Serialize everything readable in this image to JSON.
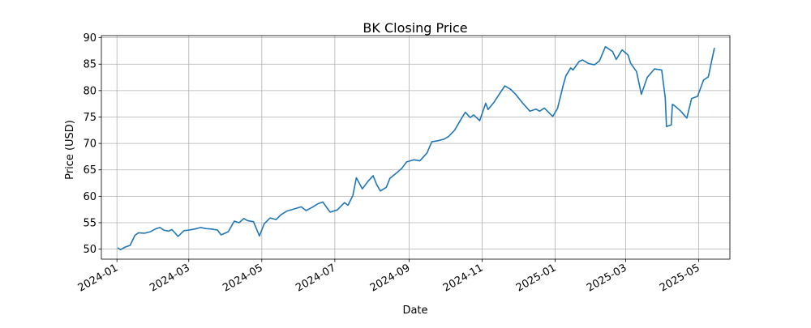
{
  "chart_data": {
    "type": "line",
    "title": "BK Closing Price",
    "xlabel": "Date",
    "ylabel": "Price (USD)",
    "x_range": [
      "2023-12-19",
      "2025-05-27"
    ],
    "ylim": [
      48.1,
      90.4
    ],
    "grid": true,
    "x_ticks": [
      "2024-01",
      "2024-03",
      "2024-05",
      "2024-07",
      "2024-09",
      "2024-11",
      "2025-01",
      "2025-03",
      "2025-05"
    ],
    "y_ticks": [
      50,
      55,
      60,
      65,
      70,
      75,
      80,
      85,
      90
    ],
    "line_color": "#1f77b4",
    "series": [
      {
        "x": [
          "2024-01-02",
          "2024-01-04",
          "2024-01-08",
          "2024-01-12",
          "2024-01-16",
          "2024-01-19",
          "2024-01-24",
          "2024-01-29",
          "2024-02-02",
          "2024-02-06",
          "2024-02-09",
          "2024-02-13",
          "2024-02-16",
          "2024-02-21",
          "2024-02-26",
          "2024-03-01",
          "2024-03-06",
          "2024-03-11",
          "2024-03-15",
          "2024-03-20",
          "2024-03-25",
          "2024-03-28",
          "2024-04-03",
          "2024-04-08",
          "2024-04-12",
          "2024-04-16",
          "2024-04-19",
          "2024-04-24",
          "2024-04-29",
          "2024-05-03",
          "2024-05-08",
          "2024-05-13",
          "2024-05-17",
          "2024-05-22",
          "2024-05-28",
          "2024-06-03",
          "2024-06-07",
          "2024-06-12",
          "2024-06-17",
          "2024-06-21",
          "2024-06-27",
          "2024-07-03",
          "2024-07-09",
          "2024-07-12",
          "2024-07-16",
          "2024-07-19",
          "2024-07-24",
          "2024-07-29",
          "2024-08-02",
          "2024-08-05",
          "2024-08-08",
          "2024-08-13",
          "2024-08-16",
          "2024-08-21",
          "2024-08-26",
          "2024-08-30",
          "2024-09-05",
          "2024-09-10",
          "2024-09-16",
          "2024-09-20",
          "2024-09-25",
          "2024-09-30",
          "2024-10-04",
          "2024-10-09",
          "2024-10-15",
          "2024-10-18",
          "2024-10-22",
          "2024-10-25",
          "2024-10-30",
          "2024-11-04",
          "2024-11-06",
          "2024-11-11",
          "2024-11-15",
          "2024-11-20",
          "2024-11-25",
          "2024-11-29",
          "2024-12-05",
          "2024-12-11",
          "2024-12-16",
          "2024-12-19",
          "2024-12-23",
          "2024-12-30",
          "2025-01-03",
          "2025-01-08",
          "2025-01-10",
          "2025-01-14",
          "2025-01-16",
          "2025-01-21",
          "2025-01-24",
          "2025-01-29",
          "2025-02-03",
          "2025-02-07",
          "2025-02-12",
          "2025-02-18",
          "2025-02-21",
          "2025-02-26",
          "2025-03-03",
          "2025-03-05",
          "2025-03-10",
          "2025-03-14",
          "2025-03-19",
          "2025-03-25",
          "2025-03-31",
          "2025-04-03",
          "2025-04-04",
          "2025-04-08",
          "2025-04-09",
          "2025-04-11",
          "2025-04-16",
          "2025-04-21",
          "2025-04-25",
          "2025-04-30",
          "2025-05-05",
          "2025-05-09",
          "2025-05-14"
        ],
        "y": [
          50.2,
          49.9,
          50.4,
          50.7,
          52.6,
          53.1,
          53.0,
          53.3,
          53.8,
          54.1,
          53.6,
          53.4,
          53.7,
          52.4,
          53.5,
          53.6,
          53.8,
          54.1,
          53.9,
          53.8,
          53.6,
          52.7,
          53.3,
          55.3,
          55.0,
          55.8,
          55.4,
          55.2,
          52.5,
          54.8,
          55.9,
          55.6,
          56.5,
          57.2,
          57.6,
          58.0,
          57.3,
          57.9,
          58.6,
          58.9,
          57.0,
          57.4,
          58.8,
          58.3,
          60.1,
          63.5,
          61.4,
          62.9,
          63.9,
          62.2,
          61.0,
          61.7,
          63.4,
          64.3,
          65.3,
          66.5,
          66.9,
          66.7,
          68.2,
          70.3,
          70.5,
          70.8,
          71.3,
          72.5,
          74.8,
          75.9,
          74.9,
          75.4,
          74.3,
          77.6,
          76.4,
          77.8,
          79.2,
          80.9,
          80.2,
          79.3,
          77.6,
          76.1,
          76.5,
          76.1,
          76.7,
          75.1,
          76.6,
          81.2,
          82.8,
          84.3,
          83.9,
          85.5,
          85.8,
          85.1,
          84.9,
          85.6,
          88.3,
          87.4,
          85.9,
          87.7,
          86.7,
          85.2,
          83.6,
          79.3,
          82.5,
          84.1,
          83.9,
          78.6,
          73.2,
          73.5,
          77.4,
          77.1,
          76.1,
          74.8,
          78.5,
          78.9,
          82.0,
          82.6,
          88.0
        ]
      }
    ]
  }
}
